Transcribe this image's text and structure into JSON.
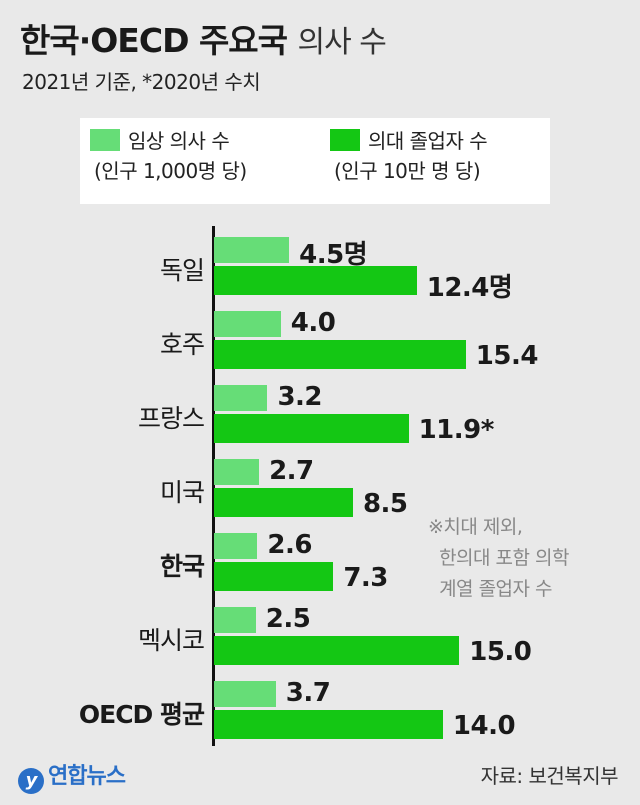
{
  "header": {
    "title": "한국·OECD 주요국",
    "title_light": "의사 수",
    "subtitle": "2021년 기준, *2020년 수치"
  },
  "legend": {
    "items": [
      {
        "label": "임상 의사 수",
        "sub": "(인구 1,000명 당)",
        "color": "#66dd77"
      },
      {
        "label": "의대 졸업자 수",
        "sub": "(인구 10만 명 당)",
        "color": "#14c714"
      }
    ]
  },
  "chart_data": {
    "type": "bar",
    "orientation": "horizontal",
    "categories": [
      "독일",
      "호주",
      "프랑스",
      "미국",
      "한국",
      "멕시코",
      "OECD 평균"
    ],
    "series": [
      {
        "name": "임상 의사 수 (인구 1,000명 당)",
        "color": "#66dd77",
        "values": [
          4.5,
          4.0,
          3.2,
          2.7,
          2.6,
          2.5,
          3.7
        ],
        "labels": [
          "4.5명",
          "4.0",
          "3.2",
          "2.7",
          "2.6",
          "2.5",
          "3.7"
        ]
      },
      {
        "name": "의대 졸업자 수 (인구 10만 명 당)",
        "color": "#14c714",
        "values": [
          12.4,
          15.4,
          11.9,
          8.5,
          7.3,
          15.0,
          14.0
        ],
        "labels": [
          "12.4명",
          "15.4",
          "11.9*",
          "8.5",
          "7.3",
          "15.0",
          "14.0"
        ]
      }
    ],
    "highlight": [
      "한국",
      "OECD 평균"
    ]
  },
  "note": "※치대 제외,\n  한의대 포함 의학\n  계열 졸업자 수",
  "footer": {
    "logo": "연합뉴스",
    "source": "자료: 보건복지부"
  }
}
